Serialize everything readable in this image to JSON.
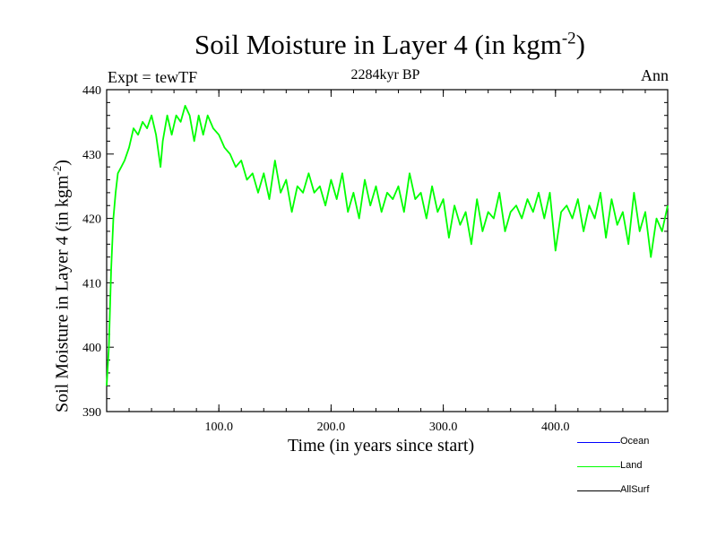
{
  "figure": {
    "title_main": "Soil Moisture in Layer 4 (in kgm",
    "title_exp": "-2",
    "title_close": ")",
    "subtitle": "2284kyr BP",
    "left_label": "Expt = tewTF",
    "right_label": "Ann"
  },
  "legend": [
    {
      "label": "Ocean",
      "color": "#0000ff"
    },
    {
      "label": "Land",
      "color": "#00ff00"
    },
    {
      "label": "AllSurf",
      "color": "#000000"
    }
  ],
  "chart_data": {
    "type": "line",
    "title": "Soil Moisture in Layer 4 (in kgm-2)",
    "xlabel": "Time (in years since start)",
    "ylabel": "Soil Moisture in Layer 4 (in kgm-2)",
    "xlim": [
      0,
      500
    ],
    "ylim": [
      390,
      440
    ],
    "xticks": [
      100,
      200,
      300,
      400
    ],
    "xtick_labels": [
      "100.0",
      "200.0",
      "300.0",
      "400.0"
    ],
    "yticks": [
      390,
      400,
      410,
      420,
      430,
      440
    ],
    "ytick_labels": [
      "390",
      "400",
      "410",
      "420",
      "430",
      "440"
    ],
    "series": [
      {
        "name": "Land",
        "color": "#00ff00",
        "x": [
          0,
          2,
          4,
          6,
          8,
          10,
          13,
          16,
          20,
          24,
          28,
          32,
          36,
          40,
          44,
          48,
          50,
          54,
          58,
          62,
          66,
          70,
          74,
          78,
          82,
          86,
          90,
          95,
          100,
          105,
          110,
          115,
          120,
          125,
          130,
          135,
          140,
          145,
          150,
          155,
          160,
          165,
          170,
          175,
          180,
          185,
          190,
          195,
          200,
          205,
          210,
          215,
          220,
          225,
          230,
          235,
          240,
          245,
          250,
          255,
          260,
          265,
          270,
          275,
          280,
          285,
          290,
          295,
          300,
          305,
          310,
          315,
          320,
          325,
          330,
          335,
          340,
          345,
          350,
          355,
          360,
          365,
          370,
          375,
          380,
          385,
          390,
          395,
          400,
          405,
          410,
          415,
          420,
          425,
          430,
          435,
          440,
          445,
          450,
          455,
          460,
          465,
          470,
          475,
          480,
          485,
          490,
          495,
          500
        ],
        "values": [
          394,
          400,
          412,
          420,
          424,
          427,
          428,
          429,
          431,
          434,
          433,
          435,
          434,
          436,
          433,
          428,
          432,
          436,
          433,
          436,
          435,
          437.5,
          436,
          432,
          436,
          433,
          436,
          434,
          433,
          431,
          430,
          428,
          429,
          426,
          427,
          424,
          427,
          423,
          429,
          424,
          426,
          421,
          425,
          424,
          427,
          424,
          425,
          422,
          426,
          423,
          427,
          421,
          424,
          420,
          426,
          422,
          425,
          421,
          424,
          423,
          425,
          421,
          427,
          423,
          424,
          420,
          425,
          421,
          423,
          417,
          422,
          419,
          421,
          416,
          423,
          418,
          421,
          420,
          424,
          418,
          421,
          422,
          420,
          423,
          421,
          424,
          420,
          424,
          415,
          421,
          422,
          420,
          423,
          418,
          422,
          420,
          424,
          417,
          423,
          419,
          421,
          416,
          424,
          418,
          421,
          414,
          420,
          418,
          422
        ]
      }
    ]
  }
}
